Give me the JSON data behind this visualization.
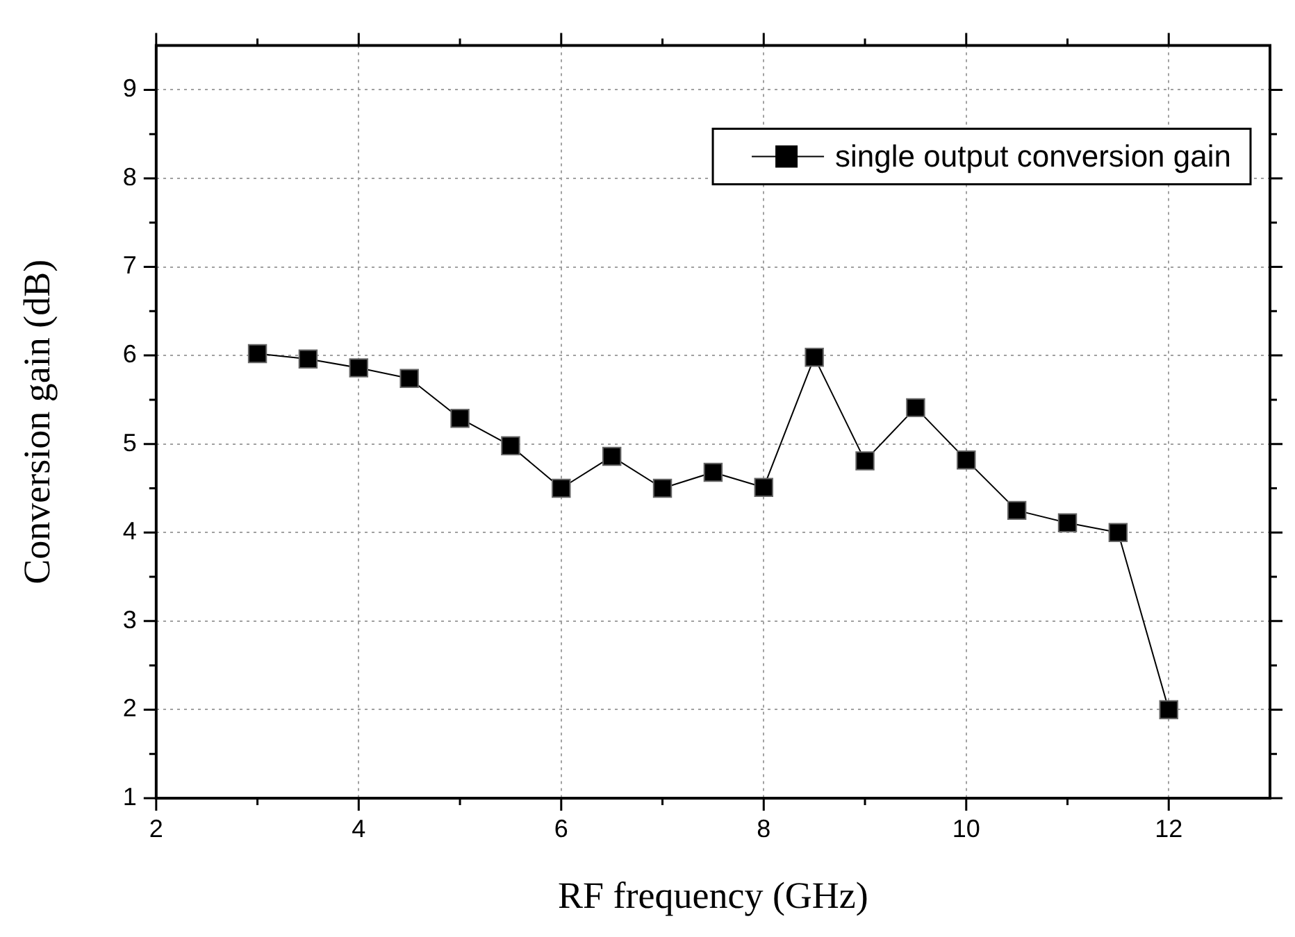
{
  "chart_data": {
    "type": "line",
    "xlabel": "RF frequency (GHz)",
    "ylabel": "Conversion gain (dB)",
    "x": [
      3,
      3.5,
      4,
      4.5,
      5,
      5.5,
      6,
      6.5,
      7,
      7.5,
      8,
      8.5,
      9,
      9.5,
      10,
      10.5,
      11,
      11.5,
      12
    ],
    "series": [
      {
        "name": "single output conversion gain",
        "color": "#000000",
        "values": [
          6.02,
          5.96,
          5.86,
          5.74,
          5.29,
          4.98,
          4.5,
          4.86,
          4.5,
          4.68,
          4.51,
          5.98,
          4.81,
          5.41,
          4.82,
          4.25,
          4.11,
          4.0,
          2.0
        ]
      }
    ],
    "xlim": [
      2,
      13
    ],
    "ylim": [
      1,
      9.5
    ],
    "xticks": [
      2,
      {
        "value": 3,
        "label": null
      },
      4,
      {
        "value": 5,
        "label": null
      },
      6,
      {
        "value": 7,
        "label": null
      },
      8,
      {
        "value": 9,
        "label": null
      },
      10,
      {
        "value": 11,
        "label": null
      },
      12
    ],
    "yticks": [
      1,
      {
        "value": 1.5,
        "label": null
      },
      2,
      {
        "value": 2.5,
        "label": null
      },
      3,
      {
        "value": 3.5,
        "label": null
      },
      4,
      {
        "value": 4.5,
        "label": null
      },
      5,
      {
        "value": 5.5,
        "label": null
      },
      6,
      {
        "value": 6.5,
        "label": null
      },
      7,
      {
        "value": 7.5,
        "label": null
      },
      8,
      {
        "value": 8.5,
        "label": null
      },
      9
    ],
    "grid": true,
    "legend": "top right",
    "marker": "square",
    "line_style": "solid"
  }
}
